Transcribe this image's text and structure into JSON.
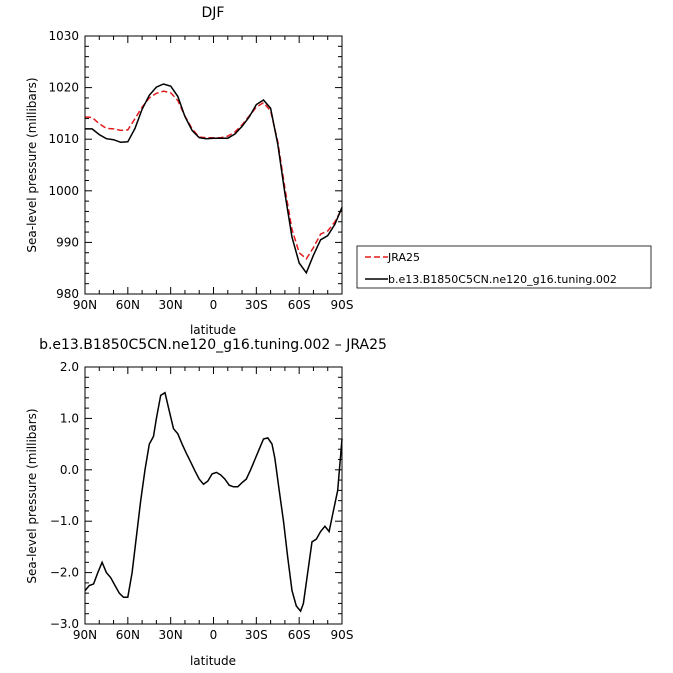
{
  "chart_data": [
    {
      "type": "line",
      "title": "DJF",
      "xlabel": "latitude",
      "ylabel": "Sea-level pressure (millibars)",
      "xticks": [
        "90N",
        "60N",
        "30N",
        "0",
        "30S",
        "60S",
        "90S"
      ],
      "xlim": [
        90,
        -90
      ],
      "ylim": [
        980,
        1030
      ],
      "yticks": [
        "980",
        "990",
        "1000",
        "1010",
        "1020",
        "1030"
      ],
      "legend": {
        "placement": "right",
        "entries": [
          "JRA25",
          "b.e13.B1850C5CN.ne120_g16.tuning.002"
        ]
      },
      "series": [
        {
          "name": "JRA25",
          "style": "dashed",
          "color": "#e31a1c",
          "x": [
            90,
            85,
            80,
            75,
            70,
            65,
            60,
            55,
            50,
            45,
            40,
            35,
            30,
            25,
            20,
            15,
            10,
            5,
            0,
            -5,
            -10,
            -15,
            -20,
            -25,
            -30,
            -35,
            -40,
            -45,
            -50,
            -55,
            -60,
            -65,
            -70,
            -75,
            -80,
            -85,
            -90
          ],
          "y": [
            1014.3,
            1014.2,
            1013,
            1012.1,
            1012,
            1011.7,
            1011.8,
            1014,
            1016.2,
            1018,
            1018.9,
            1019.3,
            1019,
            1017.5,
            1014.5,
            1012,
            1010.4,
            1010.3,
            1010.3,
            1010.3,
            1010.6,
            1011.4,
            1012.8,
            1014.5,
            1016.2,
            1017.1,
            1015.5,
            1009.5,
            1000.5,
            992.5,
            988,
            986.8,
            989,
            991.6,
            992.2,
            994,
            996.6
          ]
        },
        {
          "name": "b.e13.B1850C5CN.ne120_g16.tuning.002",
          "style": "solid",
          "color": "#000000",
          "x": [
            90,
            85,
            80,
            75,
            70,
            65,
            60,
            55,
            50,
            45,
            40,
            35,
            30,
            25,
            20,
            15,
            10,
            5,
            0,
            -5,
            -10,
            -15,
            -20,
            -25,
            -30,
            -35,
            -40,
            -45,
            -50,
            -55,
            -60,
            -65,
            -70,
            -75,
            -80,
            -85,
            -90
          ],
          "y": [
            1012,
            1012,
            1010.9,
            1010.1,
            1009.9,
            1009.4,
            1009.5,
            1012.1,
            1015.8,
            1018.5,
            1020.1,
            1020.7,
            1020.3,
            1018.3,
            1014.4,
            1011.7,
            1010.3,
            1010.1,
            1010.2,
            1010.2,
            1010.2,
            1011,
            1012.5,
            1014.3,
            1016.7,
            1017.6,
            1016,
            1009,
            999.5,
            991,
            986,
            984.1,
            987.5,
            990.5,
            991.3,
            993.5,
            996.8
          ]
        }
      ]
    },
    {
      "type": "line",
      "title": "b.e13.B1850C5CN.ne120_g16.tuning.002 – JRA25",
      "xlabel": "latitude",
      "ylabel": "Sea-level pressure (millibars)",
      "xticks": [
        "90N",
        "60N",
        "30N",
        "0",
        "30S",
        "60S",
        "90S"
      ],
      "xlim": [
        90,
        -90
      ],
      "ylim": [
        -3.0,
        2.0
      ],
      "yticks": [
        "−3.0",
        "−2.0",
        "−1.0",
        "0.0",
        "1.0",
        "2.0"
      ],
      "series": [
        {
          "style": "solid",
          "color": "#000000",
          "x": [
            90,
            87,
            84,
            81,
            78,
            75,
            72,
            69,
            66,
            63,
            60,
            57,
            54,
            51,
            48,
            45,
            42,
            40,
            37,
            34,
            31,
            28,
            25,
            22,
            19,
            16,
            13,
            10,
            7,
            4,
            1,
            -2,
            -5,
            -8,
            -11,
            -14,
            -17,
            -20,
            -23,
            -26,
            -29,
            -32,
            -35,
            -38,
            -41,
            -43,
            -46,
            -49,
            -52,
            -55,
            -58,
            -61,
            -63,
            -66,
            -69,
            -72,
            -75,
            -78,
            -81,
            -84,
            -87,
            -90
          ],
          "y": [
            -2.35,
            -2.25,
            -2.22,
            -2.0,
            -1.8,
            -2.0,
            -2.1,
            -2.25,
            -2.4,
            -2.48,
            -2.48,
            -2.0,
            -1.3,
            -0.6,
            0.0,
            0.5,
            0.65,
            1.0,
            1.45,
            1.5,
            1.15,
            0.8,
            0.7,
            0.5,
            0.32,
            0.15,
            -0.02,
            -0.18,
            -0.28,
            -0.22,
            -0.08,
            -0.05,
            -0.1,
            -0.18,
            -0.3,
            -0.33,
            -0.33,
            -0.25,
            -0.18,
            0.0,
            0.2,
            0.4,
            0.6,
            0.62,
            0.5,
            0.22,
            -0.4,
            -1.0,
            -1.7,
            -2.35,
            -2.65,
            -2.75,
            -2.6,
            -2.0,
            -1.4,
            -1.35,
            -1.2,
            -1.1,
            -1.2,
            -0.8,
            -0.4,
            0.6
          ]
        }
      ]
    }
  ]
}
